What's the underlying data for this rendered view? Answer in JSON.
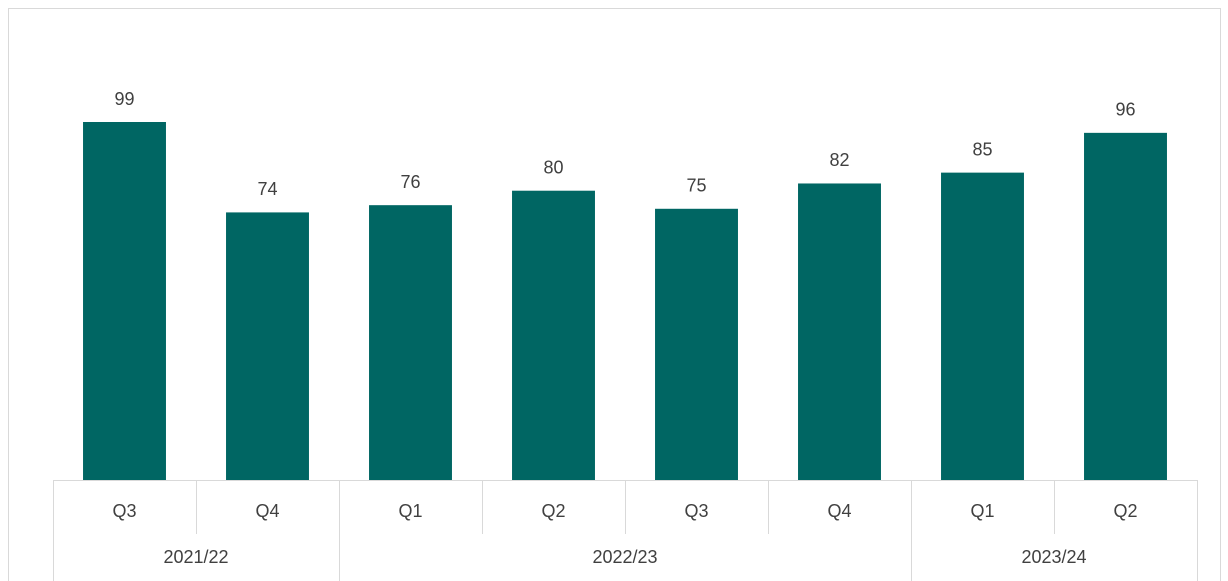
{
  "chart_data": {
    "type": "bar",
    "groups": [
      {
        "name": "2021/22",
        "categories": [
          "Q3",
          "Q4"
        ]
      },
      {
        "name": "2022/23",
        "categories": [
          "Q1",
          "Q2",
          "Q3",
          "Q4"
        ]
      },
      {
        "name": "2023/24",
        "categories": [
          "Q1",
          "Q2"
        ]
      }
    ],
    "values": [
      99,
      74,
      76,
      80,
      75,
      82,
      85,
      96
    ],
    "color": "#006663"
  }
}
